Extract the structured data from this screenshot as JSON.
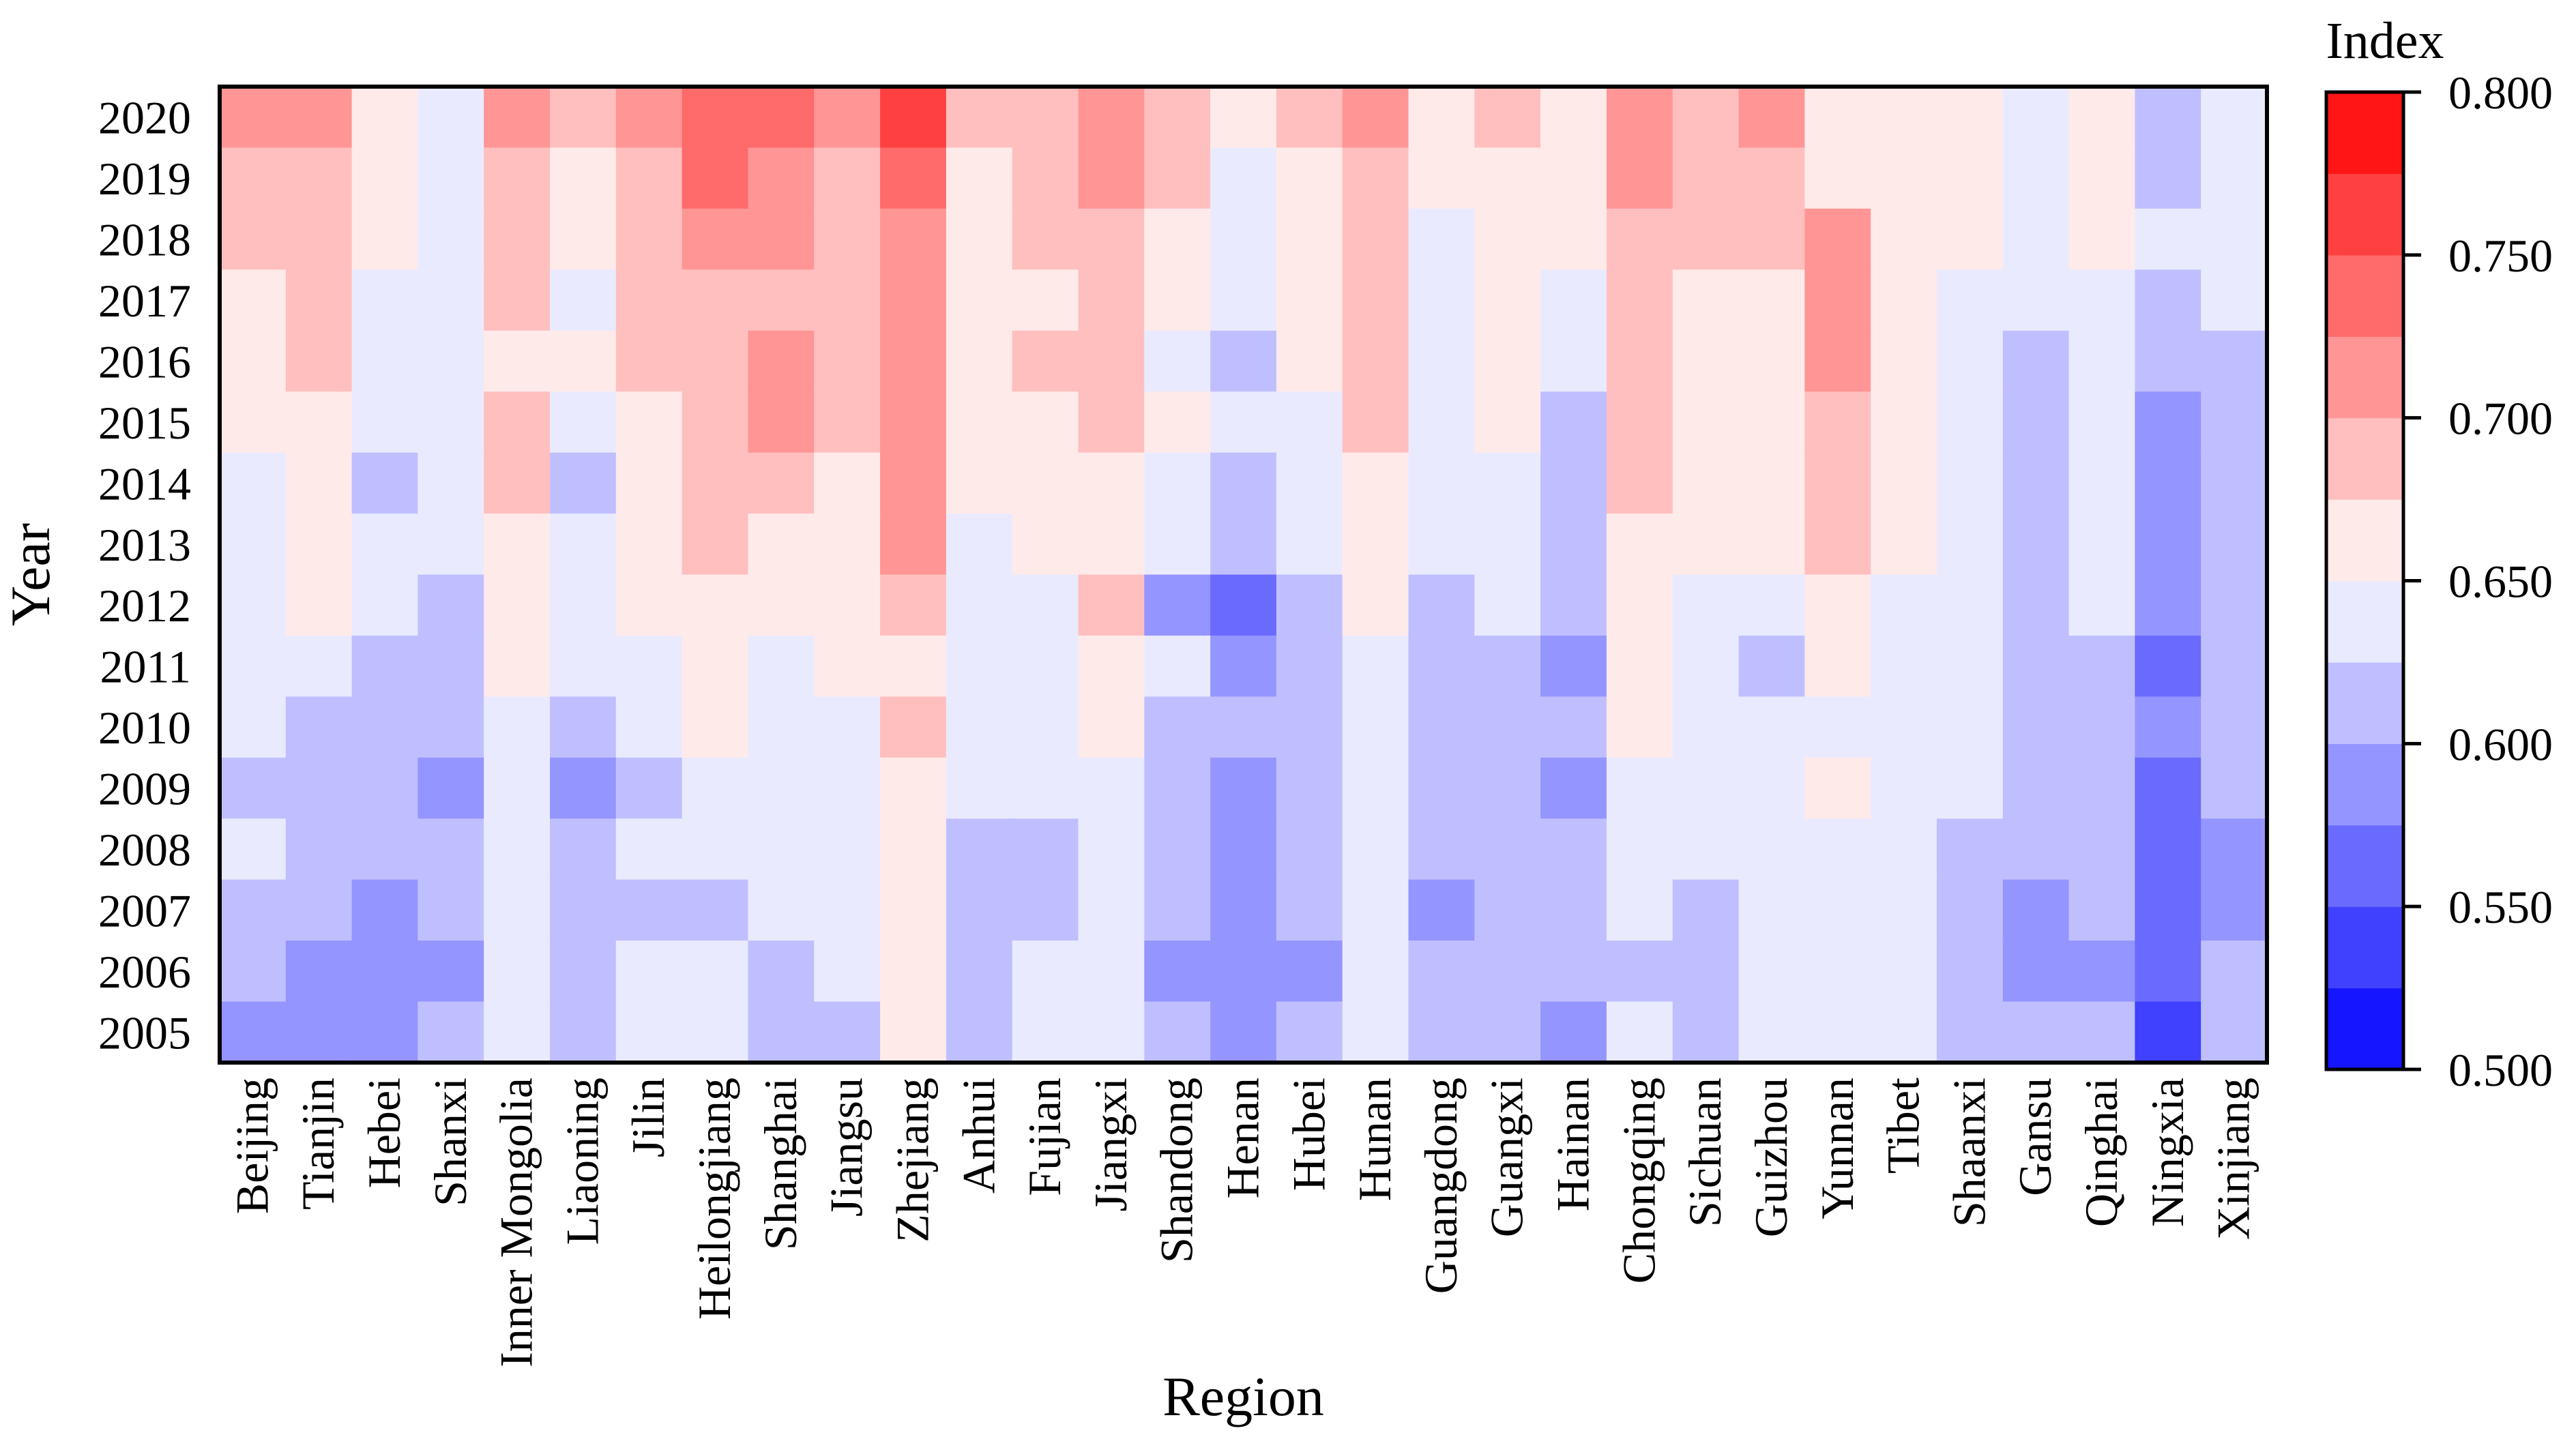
{
  "chart_data": {
    "type": "heatmap",
    "xlabel": "Region",
    "ylabel": "Year",
    "colorbar_title": "Index",
    "colorbar_ticks": [
      "0.500",
      "0.550",
      "0.600",
      "0.650",
      "0.700",
      "0.750",
      "0.800"
    ],
    "colorbar_range": [
      0.5,
      0.8
    ],
    "colorbar_steps": 12,
    "colors": {
      "low": "#0000ff",
      "mid": "#ffffff",
      "high": "#ff0000"
    },
    "x_categories": [
      "Beijing",
      "Tianjin",
      "Hebei",
      "Shanxi",
      "Inner Mongolia",
      "Liaoning",
      "Jilin",
      "Heilongjiang",
      "Shanghai",
      "Jiangsu",
      "Zhejiang",
      "Anhui",
      "Fujian",
      "Jiangxi",
      "Shandong",
      "Henan",
      "Hubei",
      "Hunan",
      "Guangdong",
      "Guangxi",
      "Hainan",
      "Chongqing",
      "Sichuan",
      "Guizhou",
      "Yunnan",
      "Tibet",
      "Shaanxi",
      "Gansu",
      "Qinghai",
      "Ningxia",
      "Xinjiang"
    ],
    "y_categories": [
      "2020",
      "2019",
      "2018",
      "2017",
      "2016",
      "2015",
      "2014",
      "2013",
      "2012",
      "2011",
      "2010",
      "2009",
      "2008",
      "2007",
      "2006",
      "2005"
    ],
    "values": [
      [
        0.712,
        0.712,
        0.662,
        0.637,
        0.712,
        0.688,
        0.712,
        0.738,
        0.738,
        0.712,
        0.762,
        0.688,
        0.688,
        0.712,
        0.688,
        0.662,
        0.688,
        0.712,
        0.662,
        0.688,
        0.662,
        0.712,
        0.688,
        0.712,
        0.662,
        0.662,
        0.662,
        0.637,
        0.662,
        0.613,
        0.637
      ],
      [
        0.688,
        0.688,
        0.662,
        0.637,
        0.688,
        0.662,
        0.688,
        0.738,
        0.712,
        0.688,
        0.738,
        0.662,
        0.688,
        0.712,
        0.688,
        0.637,
        0.662,
        0.688,
        0.662,
        0.662,
        0.662,
        0.712,
        0.688,
        0.688,
        0.662,
        0.662,
        0.662,
        0.637,
        0.662,
        0.613,
        0.637
      ],
      [
        0.688,
        0.688,
        0.662,
        0.637,
        0.688,
        0.662,
        0.688,
        0.712,
        0.712,
        0.688,
        0.712,
        0.662,
        0.688,
        0.688,
        0.662,
        0.637,
        0.662,
        0.688,
        0.637,
        0.662,
        0.662,
        0.688,
        0.688,
        0.688,
        0.712,
        0.662,
        0.662,
        0.637,
        0.662,
        0.637,
        0.637
      ],
      [
        0.662,
        0.688,
        0.637,
        0.637,
        0.688,
        0.637,
        0.688,
        0.688,
        0.688,
        0.688,
        0.712,
        0.662,
        0.662,
        0.688,
        0.662,
        0.637,
        0.662,
        0.688,
        0.637,
        0.662,
        0.637,
        0.688,
        0.662,
        0.662,
        0.712,
        0.662,
        0.637,
        0.637,
        0.637,
        0.613,
        0.637
      ],
      [
        0.662,
        0.688,
        0.637,
        0.637,
        0.662,
        0.662,
        0.688,
        0.688,
        0.712,
        0.688,
        0.712,
        0.662,
        0.688,
        0.688,
        0.637,
        0.613,
        0.662,
        0.688,
        0.637,
        0.662,
        0.637,
        0.688,
        0.662,
        0.662,
        0.712,
        0.662,
        0.637,
        0.613,
        0.637,
        0.613,
        0.613
      ],
      [
        0.662,
        0.662,
        0.637,
        0.637,
        0.688,
        0.637,
        0.662,
        0.688,
        0.712,
        0.688,
        0.712,
        0.662,
        0.662,
        0.688,
        0.662,
        0.637,
        0.637,
        0.688,
        0.637,
        0.662,
        0.613,
        0.688,
        0.662,
        0.662,
        0.688,
        0.662,
        0.637,
        0.613,
        0.637,
        0.588,
        0.613
      ],
      [
        0.637,
        0.662,
        0.613,
        0.637,
        0.688,
        0.613,
        0.662,
        0.688,
        0.688,
        0.662,
        0.712,
        0.662,
        0.662,
        0.662,
        0.637,
        0.613,
        0.637,
        0.662,
        0.637,
        0.637,
        0.613,
        0.688,
        0.662,
        0.662,
        0.688,
        0.662,
        0.637,
        0.613,
        0.637,
        0.588,
        0.613
      ],
      [
        0.637,
        0.662,
        0.637,
        0.637,
        0.662,
        0.637,
        0.662,
        0.688,
        0.662,
        0.662,
        0.712,
        0.637,
        0.662,
        0.662,
        0.637,
        0.613,
        0.637,
        0.662,
        0.637,
        0.637,
        0.613,
        0.662,
        0.662,
        0.662,
        0.688,
        0.662,
        0.637,
        0.613,
        0.637,
        0.588,
        0.613
      ],
      [
        0.637,
        0.662,
        0.637,
        0.613,
        0.662,
        0.637,
        0.662,
        0.662,
        0.662,
        0.662,
        0.688,
        0.637,
        0.637,
        0.688,
        0.588,
        0.562,
        0.613,
        0.662,
        0.613,
        0.637,
        0.613,
        0.662,
        0.637,
        0.637,
        0.662,
        0.637,
        0.637,
        0.613,
        0.637,
        0.588,
        0.613
      ],
      [
        0.637,
        0.637,
        0.613,
        0.613,
        0.662,
        0.637,
        0.637,
        0.662,
        0.637,
        0.662,
        0.662,
        0.637,
        0.637,
        0.662,
        0.637,
        0.588,
        0.613,
        0.637,
        0.613,
        0.613,
        0.588,
        0.662,
        0.637,
        0.613,
        0.662,
        0.637,
        0.637,
        0.613,
        0.613,
        0.562,
        0.613
      ],
      [
        0.637,
        0.613,
        0.613,
        0.613,
        0.637,
        0.613,
        0.637,
        0.662,
        0.637,
        0.637,
        0.688,
        0.637,
        0.637,
        0.662,
        0.613,
        0.613,
        0.613,
        0.637,
        0.613,
        0.613,
        0.613,
        0.662,
        0.637,
        0.637,
        0.637,
        0.637,
        0.637,
        0.613,
        0.613,
        0.588,
        0.613
      ],
      [
        0.613,
        0.613,
        0.613,
        0.588,
        0.637,
        0.588,
        0.613,
        0.637,
        0.637,
        0.637,
        0.662,
        0.637,
        0.637,
        0.637,
        0.613,
        0.588,
        0.613,
        0.637,
        0.613,
        0.613,
        0.588,
        0.637,
        0.637,
        0.637,
        0.662,
        0.637,
        0.637,
        0.613,
        0.613,
        0.562,
        0.613
      ],
      [
        0.637,
        0.613,
        0.613,
        0.613,
        0.637,
        0.613,
        0.637,
        0.637,
        0.637,
        0.637,
        0.662,
        0.613,
        0.613,
        0.637,
        0.613,
        0.588,
        0.613,
        0.637,
        0.613,
        0.613,
        0.613,
        0.637,
        0.637,
        0.637,
        0.637,
        0.637,
        0.613,
        0.613,
        0.613,
        0.562,
        0.588
      ],
      [
        0.613,
        0.613,
        0.588,
        0.613,
        0.637,
        0.613,
        0.613,
        0.613,
        0.637,
        0.637,
        0.662,
        0.613,
        0.613,
        0.637,
        0.613,
        0.588,
        0.613,
        0.637,
        0.588,
        0.613,
        0.613,
        0.637,
        0.613,
        0.637,
        0.637,
        0.637,
        0.613,
        0.588,
        0.613,
        0.562,
        0.588
      ],
      [
        0.613,
        0.588,
        0.588,
        0.588,
        0.637,
        0.613,
        0.637,
        0.637,
        0.613,
        0.637,
        0.662,
        0.613,
        0.637,
        0.637,
        0.588,
        0.588,
        0.588,
        0.637,
        0.613,
        0.613,
        0.613,
        0.613,
        0.613,
        0.637,
        0.637,
        0.637,
        0.613,
        0.588,
        0.588,
        0.562,
        0.613
      ],
      [
        0.588,
        0.588,
        0.588,
        0.613,
        0.637,
        0.613,
        0.637,
        0.637,
        0.613,
        0.613,
        0.662,
        0.613,
        0.637,
        0.637,
        0.613,
        0.588,
        0.613,
        0.637,
        0.613,
        0.613,
        0.588,
        0.637,
        0.613,
        0.637,
        0.637,
        0.637,
        0.613,
        0.613,
        0.613,
        0.537,
        0.613
      ]
    ]
  }
}
